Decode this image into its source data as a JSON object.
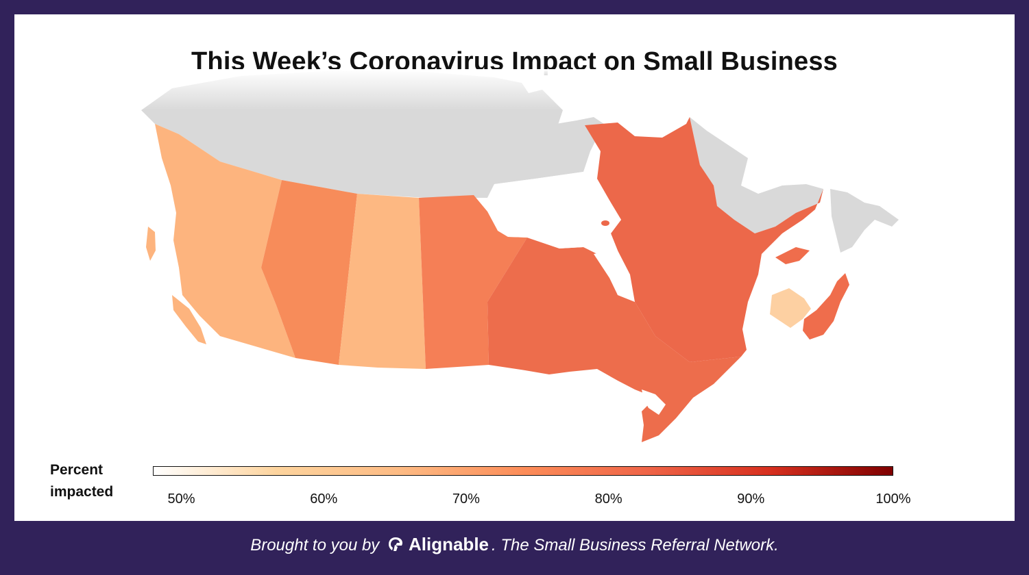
{
  "title": "This Week’s Coronavirus Impact on Small Business",
  "legend": {
    "label_line1": "Percent",
    "label_line2": "impacted",
    "ticks": [
      "50%",
      "60%",
      "70%",
      "80%",
      "90%",
      "100%"
    ],
    "range": [
      48,
      100
    ],
    "colors": [
      "#ffffff",
      "#fdd49e",
      "#fdbb84",
      "#fc8d59",
      "#ef6548",
      "#d7301f",
      "#7f0000"
    ]
  },
  "chart_data": {
    "type": "choropleth",
    "title": "This Week’s Coronavirus Impact on Small Business",
    "legend_title": "Percent impacted",
    "scale": {
      "min": 48,
      "max": 100,
      "ticks": [
        50,
        60,
        70,
        80,
        90,
        100
      ]
    },
    "regions": [
      {
        "name": "British Columbia",
        "value": 65,
        "color": "#fdb47e"
      },
      {
        "name": "Alberta",
        "value": 73,
        "color": "#f78c5a"
      },
      {
        "name": "Saskatchewan",
        "value": 64,
        "color": "#fdb882"
      },
      {
        "name": "Manitoba",
        "value": 75,
        "color": "#f57f56"
      },
      {
        "name": "Ontario",
        "value": 78,
        "color": "#ed6d4c"
      },
      {
        "name": "Quebec",
        "value": 78,
        "color": "#ec684a"
      },
      {
        "name": "New Brunswick",
        "value": 60,
        "color": "#fdd0a2"
      },
      {
        "name": "Nova Scotia",
        "value": 77,
        "color": "#ef6d4c"
      },
      {
        "name": "Prince Edward Island",
        "value": 77,
        "color": "#ef6d4c"
      },
      {
        "name": "Newfoundland and Labrador",
        "value": null,
        "color": "#d9d9d9"
      },
      {
        "name": "Northern Territories",
        "value": null,
        "color": "#d9d9d9"
      }
    ]
  },
  "footer": {
    "prefix": "Brought to you by",
    "brand": "Alignable",
    "suffix": ". The Small Business Referral Network."
  }
}
